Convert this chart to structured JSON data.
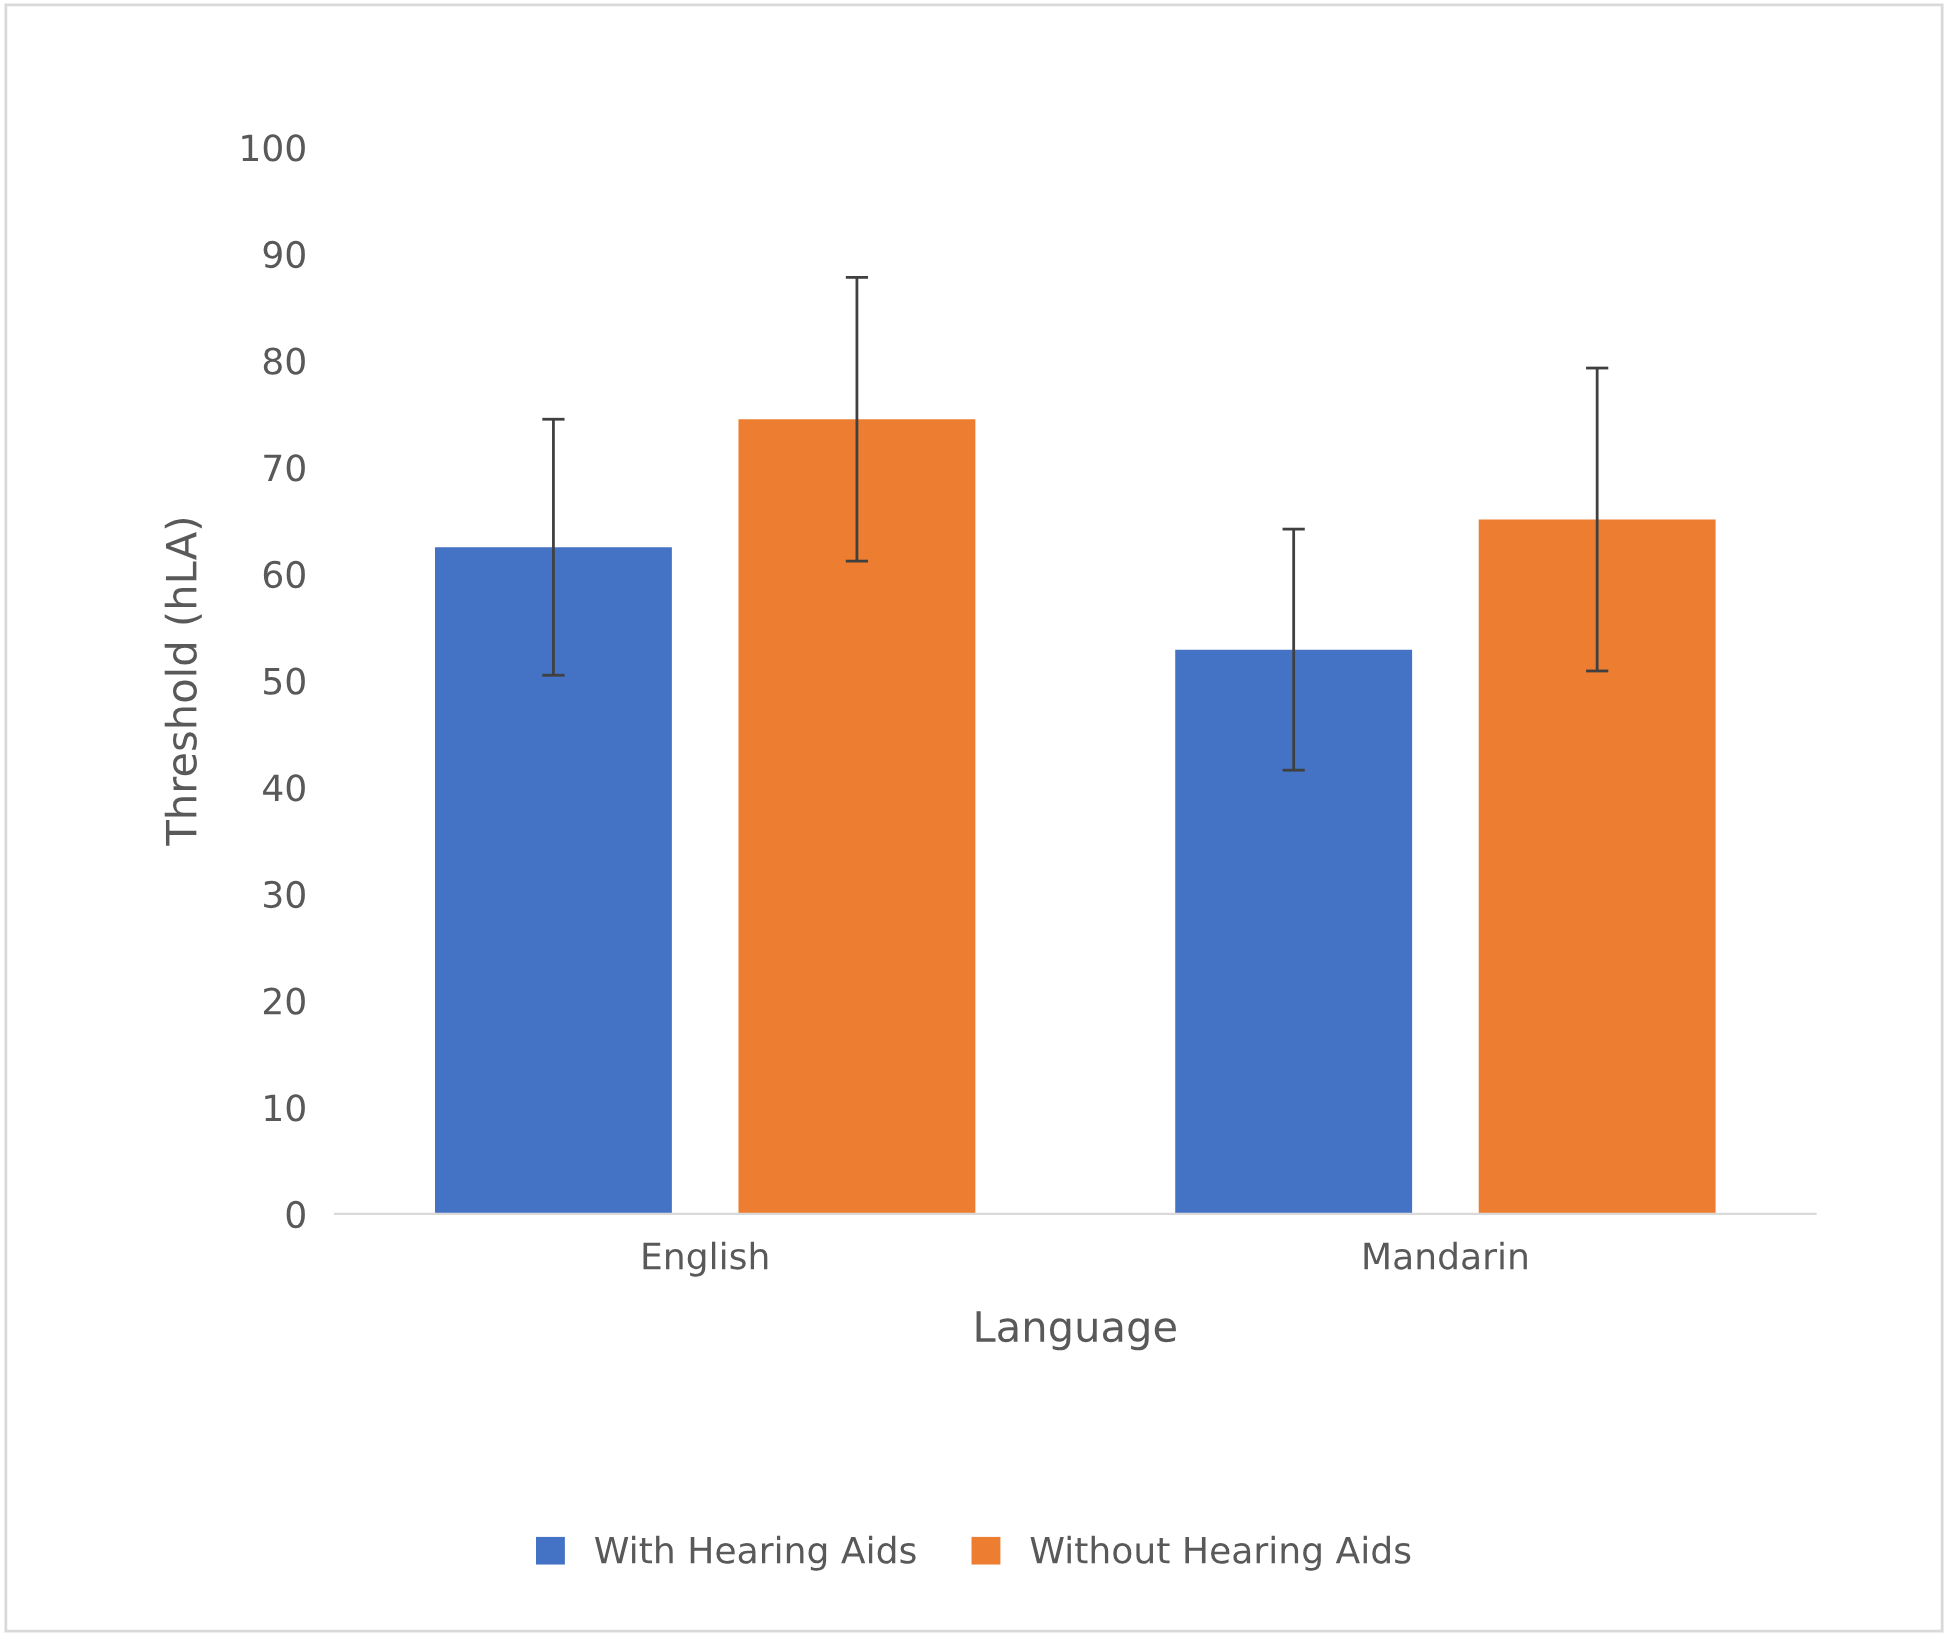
{
  "chart_data": {
    "type": "bar",
    "xlabel": "Language",
    "ylabel": "Threshold (hLA)",
    "categories": [
      "English",
      "Mandarin"
    ],
    "series": [
      {
        "name": "With Hearing Aids",
        "color": "#4472c4",
        "values": [
          62.5,
          52.9
        ],
        "errors": [
          12,
          11.3
        ]
      },
      {
        "name": "Without Hearing Aids",
        "color": "#ed7d31",
        "values": [
          74.5,
          65.1
        ],
        "errors": [
          13.3,
          14.2
        ]
      }
    ],
    "ylim": [
      0,
      100
    ],
    "yticks": [
      0,
      10,
      20,
      30,
      40,
      50,
      60,
      70,
      80,
      90,
      100
    ],
    "grid": false,
    "legend": "bottom"
  }
}
